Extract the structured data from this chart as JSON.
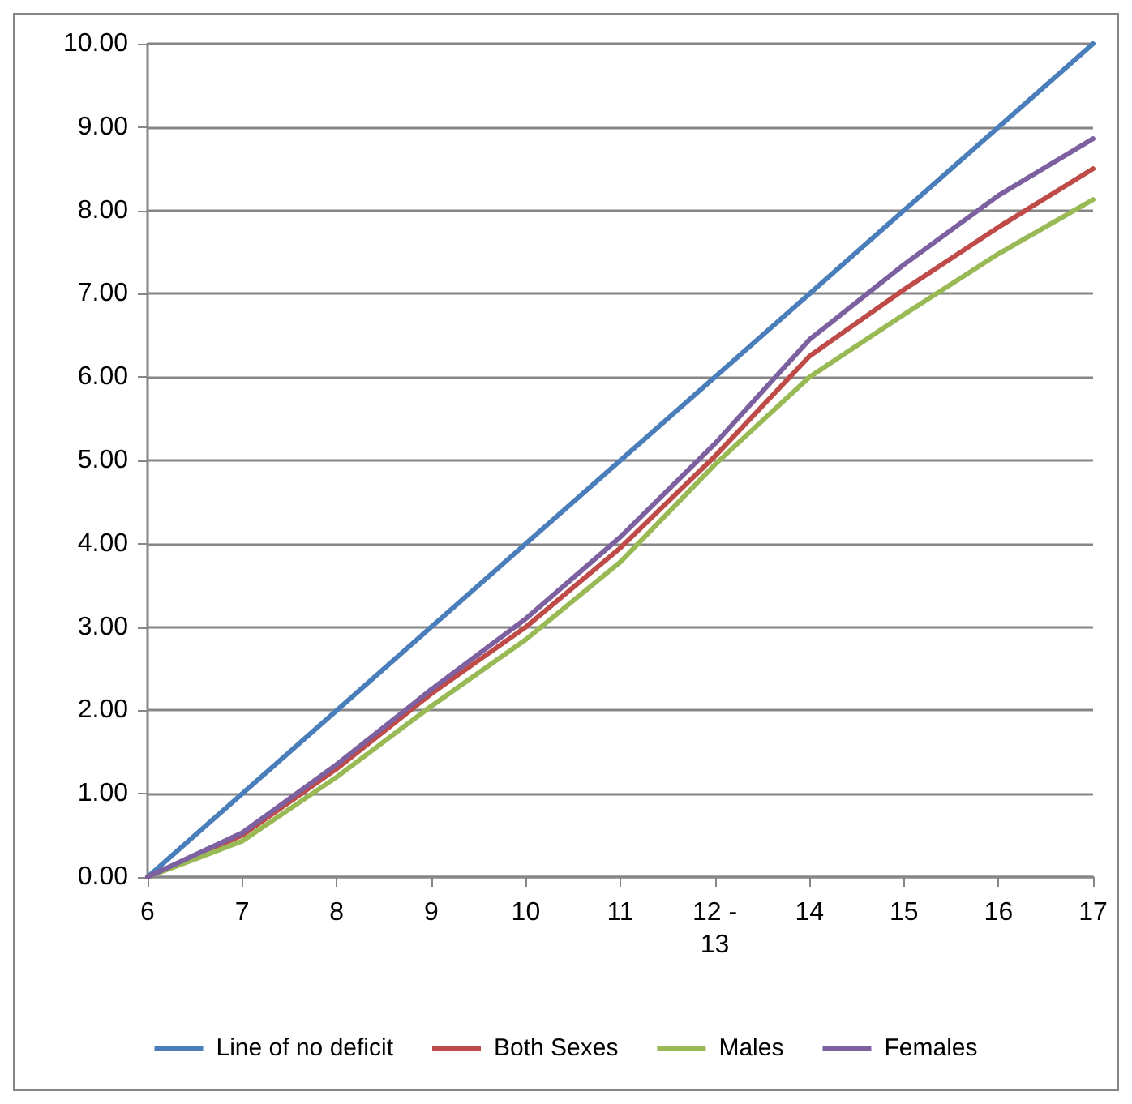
{
  "chart_data": {
    "type": "line",
    "categories": [
      "6",
      "7",
      "8",
      "9",
      "10",
      "11",
      "12 -\n13",
      "14",
      "15",
      "16",
      "17"
    ],
    "series": [
      {
        "name": "Line of no deficit",
        "color": "#4a7ebb",
        "values": [
          0,
          1,
          2,
          3,
          4,
          5,
          6,
          7,
          8,
          9,
          10
        ]
      },
      {
        "name": "Both Sexes",
        "color": "#be4b48",
        "values": [
          0,
          0.5,
          1.3,
          2.2,
          3.0,
          3.95,
          5.05,
          6.25,
          7.05,
          7.8,
          8.5
        ]
      },
      {
        "name": "Males",
        "color": "#98b954",
        "values": [
          0,
          0.43,
          1.2,
          2.05,
          2.85,
          3.78,
          4.95,
          6.0,
          6.75,
          7.48,
          8.13
        ]
      },
      {
        "name": "Females",
        "color": "#7d60a0",
        "values": [
          0,
          0.53,
          1.35,
          2.25,
          3.1,
          4.08,
          5.2,
          6.45,
          7.35,
          8.18,
          8.86
        ]
      }
    ],
    "ylim": [
      0,
      10
    ],
    "yticks": [
      {
        "value": 0,
        "label": "0.00"
      },
      {
        "value": 1,
        "label": "1.00"
      },
      {
        "value": 2,
        "label": "2.00"
      },
      {
        "value": 3,
        "label": "3.00"
      },
      {
        "value": 4,
        "label": "4.00"
      },
      {
        "value": 5,
        "label": "5.00"
      },
      {
        "value": 6,
        "label": "6.00"
      },
      {
        "value": 7,
        "label": "7.00"
      },
      {
        "value": 8,
        "label": "8.00"
      },
      {
        "value": 9,
        "label": "9.00"
      },
      {
        "value": 10,
        "label": "10.00"
      }
    ],
    "grid": "y",
    "legend": "bottom",
    "marker": "none",
    "line_style": "solid"
  }
}
